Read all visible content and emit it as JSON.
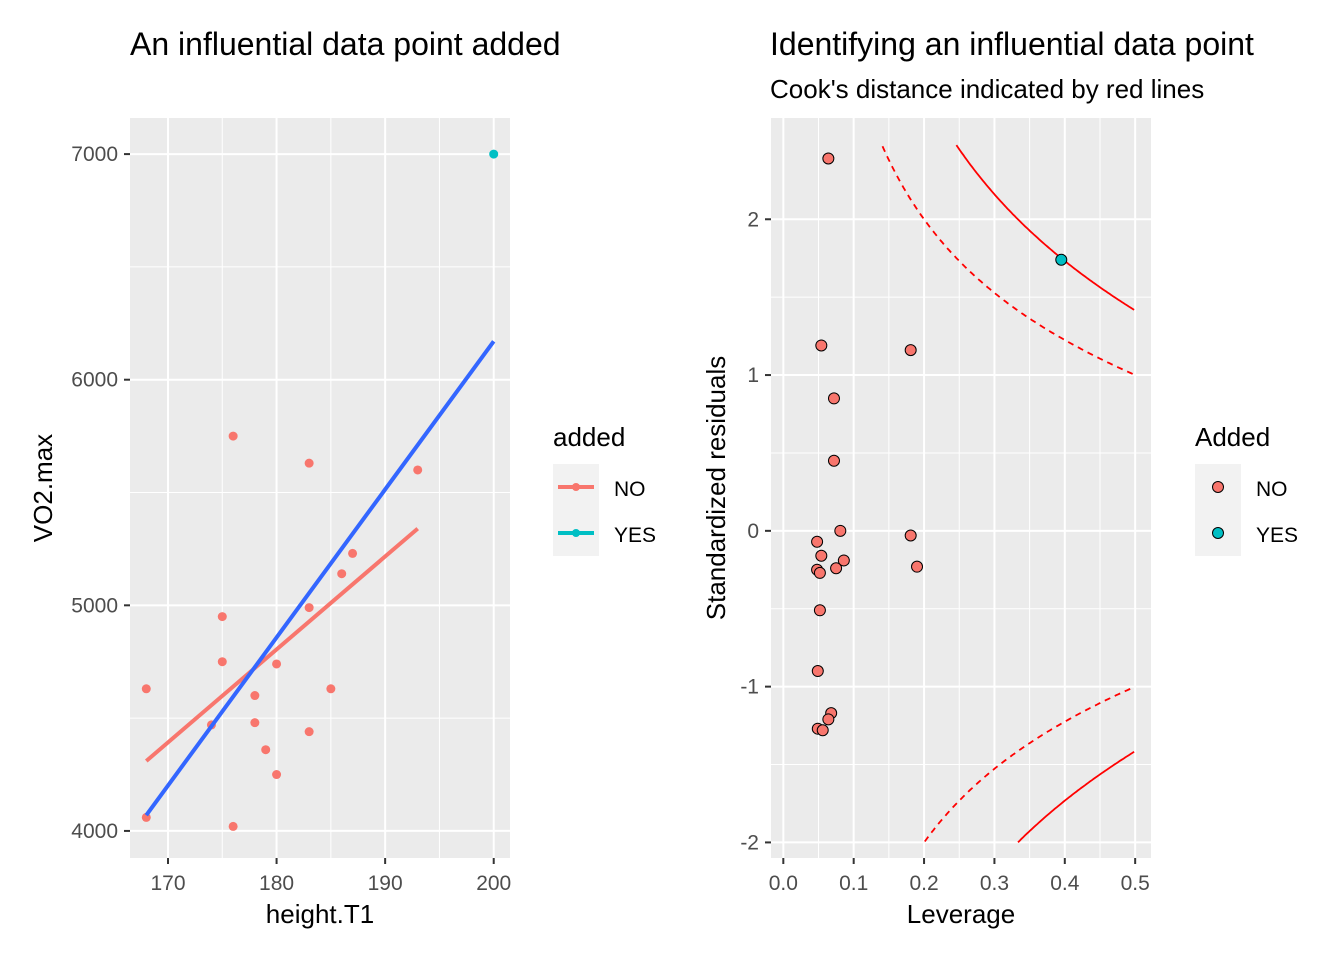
{
  "chart_data": [
    {
      "type": "scatter",
      "title": "An influential data point added",
      "xlabel": "height.T1",
      "ylabel": "VO2.max",
      "xlim": [
        166.5,
        201.5
      ],
      "ylim": [
        3880,
        7160
      ],
      "x_ticks": [
        170,
        180,
        190,
        200
      ],
      "y_ticks": [
        4000,
        5000,
        6000,
        7000
      ],
      "grid": true,
      "legend": {
        "title": "added",
        "position": "right",
        "entries": [
          {
            "label": "NO",
            "color": "#F8766D"
          },
          {
            "label": "YES",
            "color": "#00BFC4"
          }
        ]
      },
      "series": [
        {
          "name": "NO",
          "color": "#F8766D",
          "points": [
            [
              168,
              4630
            ],
            [
              168,
              4060
            ],
            [
              174,
              4470
            ],
            [
              175,
              4950
            ],
            [
              175,
              4750
            ],
            [
              176,
              5750
            ],
            [
              176,
              4020
            ],
            [
              178,
              4600
            ],
            [
              178,
              4480
            ],
            [
              179,
              4360
            ],
            [
              180,
              4740
            ],
            [
              180,
              4250
            ],
            [
              183,
              5630
            ],
            [
              183,
              4990
            ],
            [
              183,
              4440
            ],
            [
              185,
              4630
            ],
            [
              186,
              5140
            ],
            [
              187,
              5230
            ],
            [
              193,
              5600
            ]
          ],
          "fit": [
            [
              168,
              4310
            ],
            [
              193,
              5340
            ]
          ]
        },
        {
          "name": "YES",
          "color": "#00BFC4",
          "points": [
            [
              200,
              7000
            ]
          ]
        }
      ],
      "overall_fit": {
        "color": "#3366FF",
        "line": [
          [
            168,
            4070
          ],
          [
            200,
            6170
          ]
        ]
      }
    },
    {
      "type": "scatter",
      "title": "Identifying an influential data point",
      "subtitle": "Cook's distance indicated by red lines",
      "xlabel": "Leverage",
      "ylabel": "Standardized residuals",
      "xlim": [
        -0.0175,
        0.5225
      ],
      "ylim": [
        -2.1,
        2.65
      ],
      "x_ticks": [
        0.0,
        0.1,
        0.2,
        0.3,
        0.4,
        0.5
      ],
      "x_tick_labels": [
        "0.0",
        "0.1",
        "0.2",
        "0.3",
        "0.4",
        "0.5"
      ],
      "y_ticks": [
        -2,
        -1,
        0,
        1,
        2
      ],
      "grid": true,
      "legend": {
        "title": "Added",
        "position": "right",
        "entries": [
          {
            "label": "NO",
            "color": "#F8766D"
          },
          {
            "label": "YES",
            "color": "#00BFC4"
          }
        ]
      },
      "series": [
        {
          "name": "NO",
          "color": "#F8766D",
          "points": [
            [
              0.064,
              2.39
            ],
            [
              0.054,
              1.19
            ],
            [
              0.072,
              0.85
            ],
            [
              0.072,
              0.45
            ],
            [
              0.081,
              0.0
            ],
            [
              0.048,
              -0.07
            ],
            [
              0.054,
              -0.16
            ],
            [
              0.048,
              -0.25
            ],
            [
              0.052,
              -0.27
            ],
            [
              0.086,
              -0.19
            ],
            [
              0.075,
              -0.24
            ],
            [
              0.052,
              -0.51
            ],
            [
              0.049,
              -0.9
            ],
            [
              0.068,
              -1.17
            ],
            [
              0.064,
              -1.21
            ],
            [
              0.049,
              -1.27
            ],
            [
              0.056,
              -1.28
            ],
            [
              0.181,
              1.16
            ],
            [
              0.181,
              -0.03
            ],
            [
              0.19,
              -0.23
            ]
          ]
        },
        {
          "name": "YES",
          "color": "#00BFC4",
          "points": [
            [
              0.395,
              1.74
            ]
          ]
        }
      ],
      "cooks_distance": {
        "color": "#FF0000",
        "levels": [
          0.5,
          1
        ],
        "styles": [
          "dashed",
          "solid"
        ]
      }
    }
  ]
}
